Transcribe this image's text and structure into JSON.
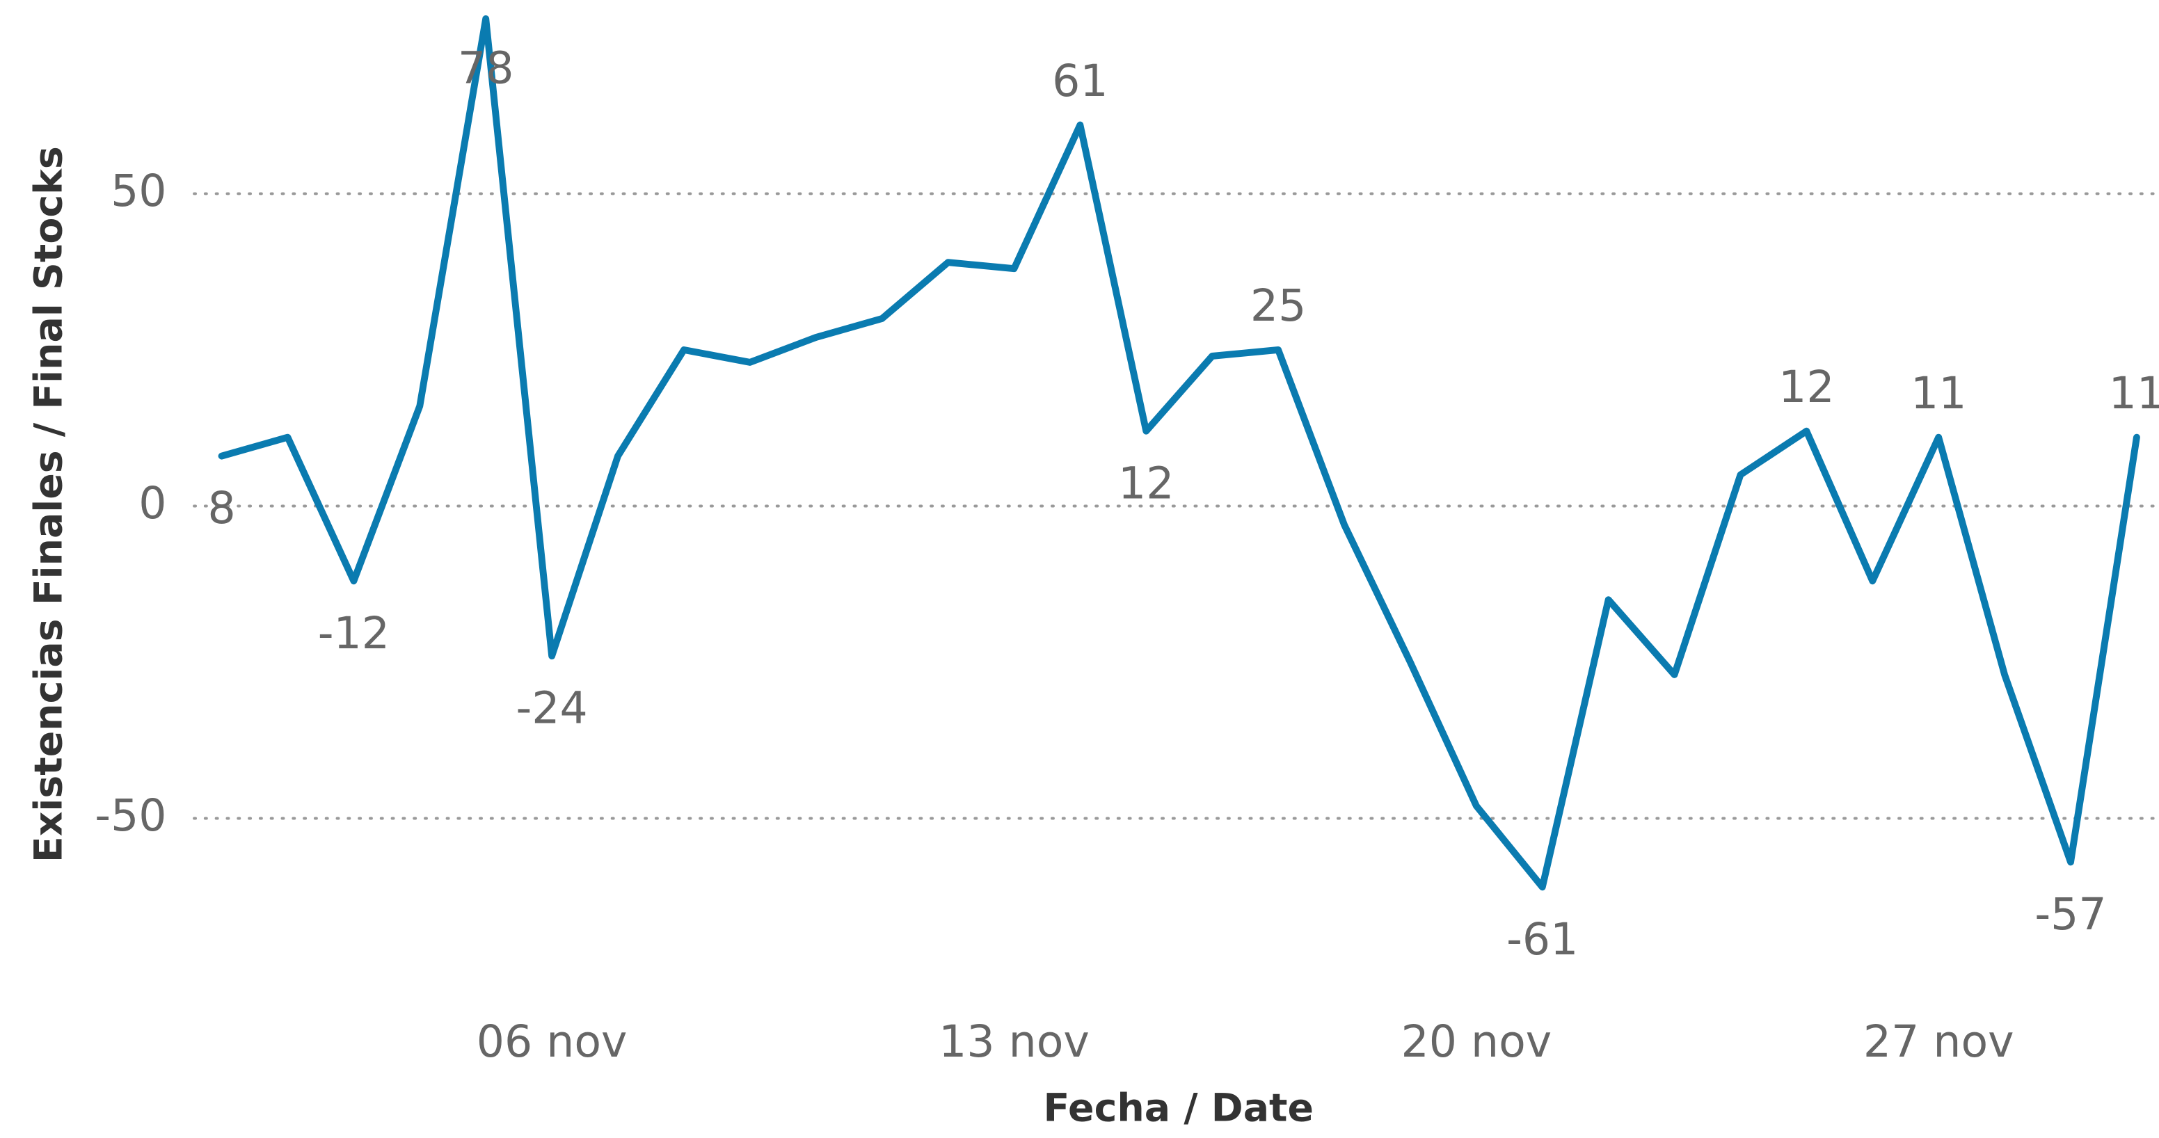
{
  "chart_data": {
    "type": "line",
    "x_title": "Fecha / Date",
    "y_title": "Existencias Finales / Final Stocks",
    "categories": [
      null,
      null,
      null,
      null,
      null,
      "06 nov",
      null,
      null,
      null,
      null,
      null,
      null,
      "13 nov",
      null,
      null,
      null,
      null,
      null,
      null,
      "20 nov",
      null,
      null,
      null,
      null,
      null,
      null,
      "27 nov",
      null,
      null,
      null
    ],
    "series": [
      {
        "name": "Existencias Finales / Final Stocks",
        "color": "#0a7bb0",
        "values": [
          8,
          11,
          -12,
          16,
          78,
          -24,
          8,
          25,
          23,
          27,
          30,
          39,
          38,
          61,
          12,
          24,
          25,
          -3,
          -25,
          -48,
          -61,
          -15,
          -27,
          5,
          12,
          -12,
          11,
          -27,
          -57,
          11
        ]
      }
    ],
    "labeled_indices": [
      0,
      2,
      4,
      5,
      13,
      14,
      16,
      20,
      24,
      26,
      28,
      29
    ],
    "ylim": [
      -73,
      81
    ],
    "yticks": [
      -50,
      0,
      50
    ],
    "grid": true
  }
}
